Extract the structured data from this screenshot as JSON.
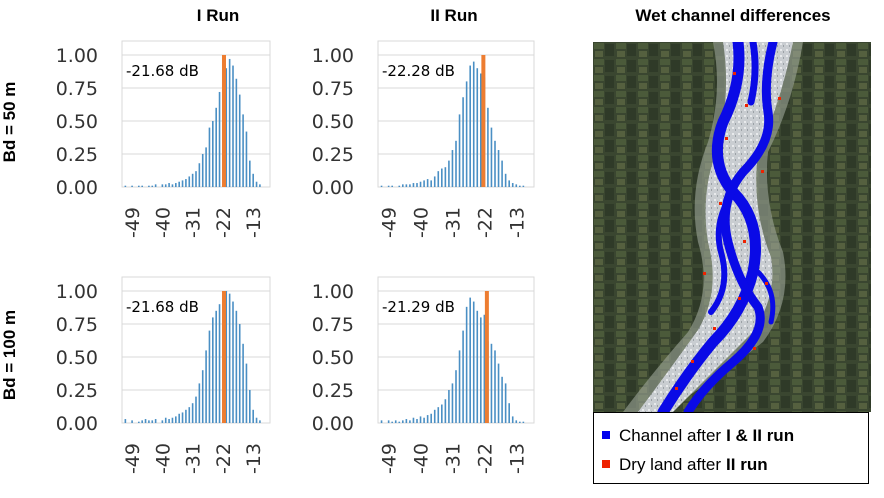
{
  "column_titles": [
    "I Run",
    "II Run",
    "Wet channel differences"
  ],
  "row_titles": [
    "Bd = 50 m",
    "Bd = 100 m"
  ],
  "colors": {
    "bars": "#4a8fc4",
    "threshold": "#ed7d31",
    "channel": "#0000ee",
    "dry_land": "#ee2200",
    "grid": "#d9d9d9"
  },
  "chart_data": [
    {
      "type": "bar",
      "title": "I Run",
      "row": "Bd = 50 m",
      "annotation": "-21.68 dB",
      "threshold_db": -21.68,
      "xlim": [
        -52,
        -8
      ],
      "ylim": [
        0,
        1
      ],
      "x_ticks": [
        "-49",
        "-40",
        "-31",
        "-22",
        "-13"
      ],
      "y_ticks": [
        "0.00",
        "0.25",
        "0.50",
        "0.75",
        "1.00"
      ],
      "x": [
        -51,
        -49,
        -48,
        -47,
        -46,
        -45,
        -44,
        -43,
        -42,
        -41,
        -40,
        -39,
        -38,
        -37,
        -36,
        -35,
        -34,
        -33,
        -32,
        -31,
        -30,
        -29,
        -28,
        -27,
        -26,
        -25,
        -24,
        -23,
        -22,
        -21,
        -20,
        -19,
        -18,
        -17,
        -16,
        -15,
        -14,
        -13,
        -12,
        -11
      ],
      "values": [
        0.01,
        0.01,
        0.0,
        0.01,
        0.01,
        0.0,
        0.01,
        0.01,
        0.02,
        0.0,
        0.02,
        0.02,
        0.03,
        0.02,
        0.03,
        0.04,
        0.05,
        0.06,
        0.08,
        0.1,
        0.12,
        0.18,
        0.25,
        0.3,
        0.45,
        0.5,
        0.6,
        0.72,
        0.82,
        0.9,
        0.97,
        0.92,
        0.82,
        0.7,
        0.55,
        0.42,
        0.2,
        0.1,
        0.04,
        0.02
      ]
    },
    {
      "type": "bar",
      "title": "II Run",
      "row": "Bd = 50 m",
      "annotation": "-22.28 dB",
      "threshold_db": -22.28,
      "xlim": [
        -52,
        -8
      ],
      "ylim": [
        0,
        1
      ],
      "x_ticks": [
        "-49",
        "-40",
        "-31",
        "-22",
        "-13"
      ],
      "y_ticks": [
        "0.00",
        "0.25",
        "0.50",
        "0.75",
        "1.00"
      ],
      "x": [
        -51,
        -49,
        -48,
        -47,
        -46,
        -45,
        -44,
        -43,
        -42,
        -41,
        -40,
        -39,
        -38,
        -37,
        -36,
        -35,
        -34,
        -33,
        -32,
        -31,
        -30,
        -29,
        -28,
        -27,
        -26,
        -25,
        -24,
        -23,
        -22,
        -21,
        -20,
        -19,
        -18,
        -17,
        -16,
        -15,
        -14,
        -13,
        -12,
        -11
      ],
      "values": [
        0.01,
        0.01,
        0.01,
        0.0,
        0.01,
        0.02,
        0.02,
        0.02,
        0.03,
        0.03,
        0.04,
        0.05,
        0.06,
        0.05,
        0.08,
        0.12,
        0.14,
        0.15,
        0.2,
        0.28,
        0.35,
        0.55,
        0.68,
        0.8,
        0.92,
        0.95,
        0.9,
        0.86,
        0.83,
        0.6,
        0.45,
        0.35,
        0.28,
        0.2,
        0.1,
        0.05,
        0.03,
        0.02,
        0.01,
        0.01
      ]
    },
    {
      "type": "bar",
      "title": "I Run",
      "row": "Bd = 100 m",
      "annotation": "-21.68 dB",
      "threshold_db": -21.68,
      "xlim": [
        -52,
        -8
      ],
      "ylim": [
        0,
        1
      ],
      "x_ticks": [
        "-49",
        "-40",
        "-31",
        "-22",
        "-13"
      ],
      "y_ticks": [
        "0.00",
        "0.25",
        "0.50",
        "0.75",
        "1.00"
      ],
      "x": [
        -51,
        -49,
        -48,
        -47,
        -46,
        -45,
        -44,
        -43,
        -42,
        -41,
        -40,
        -39,
        -38,
        -37,
        -36,
        -35,
        -34,
        -33,
        -32,
        -31,
        -30,
        -29,
        -28,
        -27,
        -26,
        -25,
        -24,
        -23,
        -22,
        -21,
        -20,
        -19,
        -18,
        -17,
        -16,
        -15,
        -14,
        -13,
        -12,
        -11
      ],
      "values": [
        0.03,
        0.02,
        0.0,
        0.01,
        0.02,
        0.03,
        0.02,
        0.02,
        0.03,
        0.0,
        0.02,
        0.04,
        0.03,
        0.04,
        0.05,
        0.07,
        0.08,
        0.1,
        0.12,
        0.15,
        0.2,
        0.3,
        0.4,
        0.55,
        0.7,
        0.8,
        0.85,
        0.9,
        0.95,
        1.0,
        0.98,
        0.92,
        0.85,
        0.75,
        0.6,
        0.45,
        0.25,
        0.1,
        0.04,
        0.02
      ]
    },
    {
      "type": "bar",
      "title": "II Run",
      "row": "Bd = 100 m",
      "annotation": "-21.29 dB",
      "threshold_db": -21.29,
      "xlim": [
        -52,
        -8
      ],
      "ylim": [
        0,
        1
      ],
      "x_ticks": [
        "-49",
        "-40",
        "-31",
        "-22",
        "-13"
      ],
      "y_ticks": [
        "0.00",
        "0.25",
        "0.50",
        "0.75",
        "1.00"
      ],
      "x": [
        -51,
        -49,
        -48,
        -47,
        -46,
        -45,
        -44,
        -43,
        -42,
        -41,
        -40,
        -39,
        -38,
        -37,
        -36,
        -35,
        -34,
        -33,
        -32,
        -31,
        -30,
        -29,
        -28,
        -27,
        -26,
        -25,
        -24,
        -23,
        -22,
        -21,
        -20,
        -19,
        -18,
        -17,
        -16,
        -15,
        -14,
        -13,
        -12,
        -11
      ],
      "values": [
        0.02,
        0.02,
        0.01,
        0.02,
        0.01,
        0.02,
        0.03,
        0.02,
        0.04,
        0.03,
        0.05,
        0.04,
        0.06,
        0.07,
        0.1,
        0.12,
        0.14,
        0.18,
        0.25,
        0.3,
        0.4,
        0.55,
        0.7,
        0.88,
        0.95,
        0.92,
        0.85,
        0.8,
        0.82,
        0.62,
        0.6,
        0.55,
        0.45,
        0.35,
        0.3,
        0.15,
        0.05,
        0.02,
        0.01,
        0.01
      ]
    }
  ],
  "legend": {
    "items": [
      {
        "text": "Channel after",
        "bold": "I & II run",
        "color": "#0000ee"
      },
      {
        "text": "Dry land after",
        "bold": "II run",
        "color": "#ee2200"
      }
    ]
  }
}
